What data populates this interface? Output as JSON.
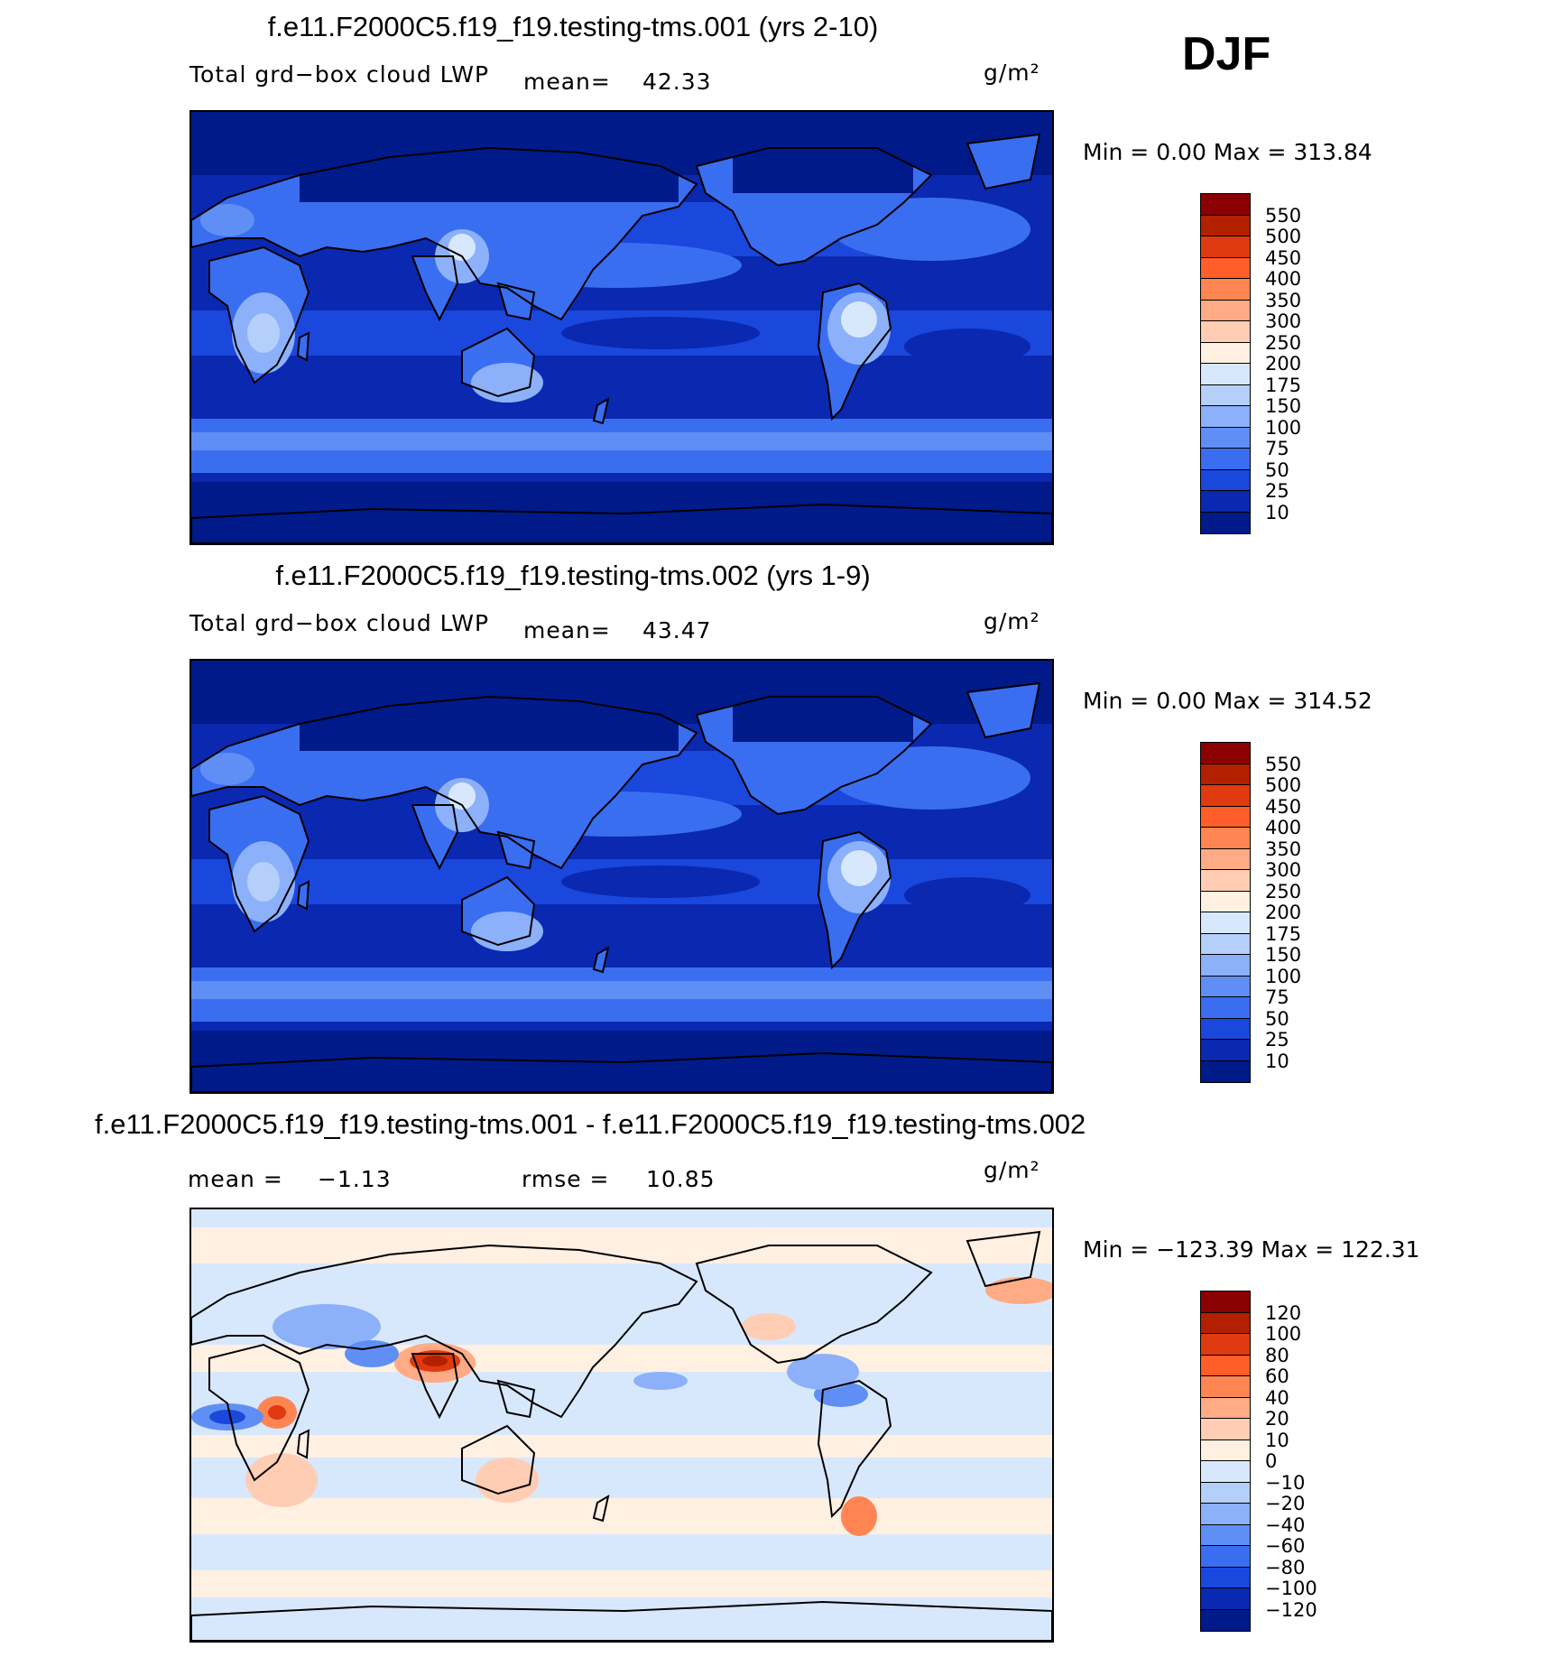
{
  "season": "DJF",
  "panels": [
    {
      "title": "f.e11.F2000C5.f19_f19.testing-tms.001 (yrs 2-10)",
      "left_label": "Total grd−box cloud LWP",
      "mean_label": "mean=",
      "mean_value": "42.33",
      "units": "g/m²",
      "minmax": "Min =     0.00 Max = 313.84",
      "colorbar_labels": [
        "550",
        "500",
        "450",
        "400",
        "350",
        "300",
        "250",
        "200",
        "175",
        "150",
        "100",
        "75",
        "50",
        "25",
        "10"
      ],
      "colorbar_colors": [
        "#8b0000",
        "#b22000",
        "#e03a10",
        "#ff5e2a",
        "#ff8552",
        "#ffab85",
        "#ffcdb4",
        "#fff0e2",
        "#d8e8fc",
        "#b4cffa",
        "#8cb1fa",
        "#5f8ff5",
        "#3a6ef0",
        "#1a47dc",
        "#0a28b0",
        "#001a8a"
      ],
      "map_style": "lwp"
    },
    {
      "title": "f.e11.F2000C5.f19_f19.testing-tms.002 (yrs 1-9)",
      "left_label": "Total grd−box cloud LWP",
      "mean_label": "mean=",
      "mean_value": "43.47",
      "units": "g/m²",
      "minmax": "Min =     0.00 Max = 314.52",
      "colorbar_labels": [
        "550",
        "500",
        "450",
        "400",
        "350",
        "300",
        "250",
        "200",
        "175",
        "150",
        "100",
        "75",
        "50",
        "25",
        "10"
      ],
      "colorbar_colors": [
        "#8b0000",
        "#b22000",
        "#e03a10",
        "#ff5e2a",
        "#ff8552",
        "#ffab85",
        "#ffcdb4",
        "#fff0e2",
        "#d8e8fc",
        "#b4cffa",
        "#8cb1fa",
        "#5f8ff5",
        "#3a6ef0",
        "#1a47dc",
        "#0a28b0",
        "#001a8a"
      ],
      "map_style": "lwp"
    },
    {
      "title": "f.e11.F2000C5.f19_f19.testing-tms.001 - f.e11.F2000C5.f19_f19.testing-tms.002",
      "mean_label": "mean =",
      "mean_value": "−1.13",
      "rmse_label": "rmse =",
      "rmse_value": "10.85",
      "units": "g/m²",
      "minmax": "Min = −123.39 Max = 122.31",
      "colorbar_labels": [
        "120",
        "100",
        "80",
        "60",
        "40",
        "20",
        "10",
        "0",
        "−10",
        "−20",
        "−40",
        "−60",
        "−80",
        "−100",
        "−120"
      ],
      "colorbar_colors": [
        "#8b0000",
        "#b22000",
        "#e03a10",
        "#ff5e2a",
        "#ff8552",
        "#ffab85",
        "#ffcdb4",
        "#fff0e2",
        "#d8e8fc",
        "#b4cffa",
        "#8cb1fa",
        "#5f8ff5",
        "#3a6ef0",
        "#1a47dc",
        "#0a28b0",
        "#001a8a"
      ],
      "map_style": "diff"
    }
  ]
}
